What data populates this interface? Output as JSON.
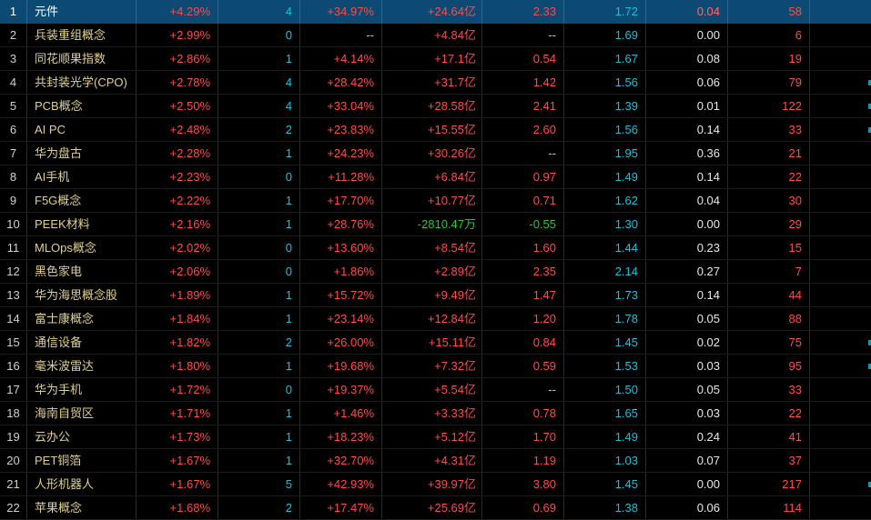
{
  "colors": {
    "background": "#000000",
    "selected_row": "#0d4a73",
    "up": "#ff4a4a",
    "down": "#27c23a",
    "name": "#e0d090",
    "cyan": "#19c0d8"
  },
  "rows": [
    {
      "idx": "1",
      "name": "元件",
      "chg": "+4.29%",
      "cnt": "4",
      "pct": "+34.97%",
      "flow": "+24.64亿",
      "v1": "2.33",
      "v2": "1.72",
      "v3": "0.04",
      "v4": "58"
    },
    {
      "idx": "2",
      "name": "兵装重组概念",
      "chg": "+2.99%",
      "cnt": "0",
      "pct": "--",
      "flow": "+4.84亿",
      "v1": "--",
      "v2": "1.69",
      "v3": "0.00",
      "v4": "6"
    },
    {
      "idx": "3",
      "name": "同花顺果指数",
      "chg": "+2.86%",
      "cnt": "1",
      "pct": "+4.14%",
      "flow": "+17.1亿",
      "v1": "0.54",
      "v2": "1.67",
      "v3": "0.08",
      "v4": "19"
    },
    {
      "idx": "4",
      "name": "共封装光学(CPO)",
      "chg": "+2.78%",
      "cnt": "4",
      "pct": "+28.42%",
      "flow": "+31.7亿",
      "v1": "1.42",
      "v2": "1.56",
      "v3": "0.06",
      "v4": "79"
    },
    {
      "idx": "5",
      "name": "PCB概念",
      "chg": "+2.50%",
      "cnt": "4",
      "pct": "+33.04%",
      "flow": "+28.58亿",
      "v1": "2.41",
      "v2": "1.39",
      "v3": "0.01",
      "v4": "122"
    },
    {
      "idx": "6",
      "name": "AI PC",
      "chg": "+2.48%",
      "cnt": "2",
      "pct": "+23.83%",
      "flow": "+15.55亿",
      "v1": "2.60",
      "v2": "1.56",
      "v3": "0.14",
      "v4": "33"
    },
    {
      "idx": "7",
      "name": "华为盘古",
      "chg": "+2.28%",
      "cnt": "1",
      "pct": "+24.23%",
      "flow": "+30.26亿",
      "v1": "--",
      "v2": "1.95",
      "v3": "0.36",
      "v4": "21"
    },
    {
      "idx": "8",
      "name": "AI手机",
      "chg": "+2.23%",
      "cnt": "0",
      "pct": "+11.28%",
      "flow": "+6.84亿",
      "v1": "0.97",
      "v2": "1.49",
      "v3": "0.14",
      "v4": "22"
    },
    {
      "idx": "9",
      "name": "F5G概念",
      "chg": "+2.22%",
      "cnt": "1",
      "pct": "+17.70%",
      "flow": "+10.77亿",
      "v1": "0.71",
      "v2": "1.62",
      "v3": "0.04",
      "v4": "30"
    },
    {
      "idx": "10",
      "name": "PEEK材料",
      "chg": "+2.16%",
      "cnt": "1",
      "pct": "+28.76%",
      "flow": "-2810.47万",
      "v1": "-0.55",
      "v2": "1.30",
      "v3": "0.00",
      "v4": "29"
    },
    {
      "idx": "11",
      "name": "MLOps概念",
      "chg": "+2.02%",
      "cnt": "0",
      "pct": "+13.60%",
      "flow": "+8.54亿",
      "v1": "1.60",
      "v2": "1.44",
      "v3": "0.23",
      "v4": "15"
    },
    {
      "idx": "12",
      "name": "黑色家电",
      "chg": "+2.06%",
      "cnt": "0",
      "pct": "+1.86%",
      "flow": "+2.89亿",
      "v1": "2.35",
      "v2": "2.14",
      "v3": "0.27",
      "v4": "7"
    },
    {
      "idx": "13",
      "name": "华为海思概念股",
      "chg": "+1.89%",
      "cnt": "1",
      "pct": "+15.72%",
      "flow": "+9.49亿",
      "v1": "1.47",
      "v2": "1.73",
      "v3": "0.14",
      "v4": "44"
    },
    {
      "idx": "14",
      "name": "富士康概念",
      "chg": "+1.84%",
      "cnt": "1",
      "pct": "+23.14%",
      "flow": "+12.84亿",
      "v1": "1.20",
      "v2": "1.78",
      "v3": "0.05",
      "v4": "88"
    },
    {
      "idx": "15",
      "name": "通信设备",
      "chg": "+1.82%",
      "cnt": "2",
      "pct": "+26.00%",
      "flow": "+15.11亿",
      "v1": "0.84",
      "v2": "1.45",
      "v3": "0.02",
      "v4": "75"
    },
    {
      "idx": "16",
      "name": "毫米波雷达",
      "chg": "+1.80%",
      "cnt": "1",
      "pct": "+19.68%",
      "flow": "+7.32亿",
      "v1": "0.59",
      "v2": "1.53",
      "v3": "0.03",
      "v4": "95"
    },
    {
      "idx": "17",
      "name": "华为手机",
      "chg": "+1.72%",
      "cnt": "0",
      "pct": "+19.37%",
      "flow": "+5.54亿",
      "v1": "--",
      "v2": "1.50",
      "v3": "0.05",
      "v4": "33"
    },
    {
      "idx": "18",
      "name": "海南自贸区",
      "chg": "+1.71%",
      "cnt": "1",
      "pct": "+1.46%",
      "flow": "+3.33亿",
      "v1": "0.78",
      "v2": "1.65",
      "v3": "0.03",
      "v4": "22"
    },
    {
      "idx": "19",
      "name": "云办公",
      "chg": "+1.73%",
      "cnt": "1",
      "pct": "+18.23%",
      "flow": "+5.12亿",
      "v1": "1.70",
      "v2": "1.49",
      "v3": "0.24",
      "v4": "41"
    },
    {
      "idx": "20",
      "name": "PET铜箔",
      "chg": "+1.67%",
      "cnt": "1",
      "pct": "+32.70%",
      "flow": "+4.31亿",
      "v1": "1.19",
      "v2": "1.03",
      "v3": "0.07",
      "v4": "37"
    },
    {
      "idx": "21",
      "name": "人形机器人",
      "chg": "+1.67%",
      "cnt": "5",
      "pct": "+42.93%",
      "flow": "+39.97亿",
      "v1": "3.80",
      "v2": "1.45",
      "v3": "0.00",
      "v4": "217"
    },
    {
      "idx": "22",
      "name": "苹果概念",
      "chg": "+1.68%",
      "cnt": "2",
      "pct": "+17.47%",
      "flow": "+25.69亿",
      "v1": "0.69",
      "v2": "1.38",
      "v3": "0.06",
      "v4": "114"
    }
  ]
}
